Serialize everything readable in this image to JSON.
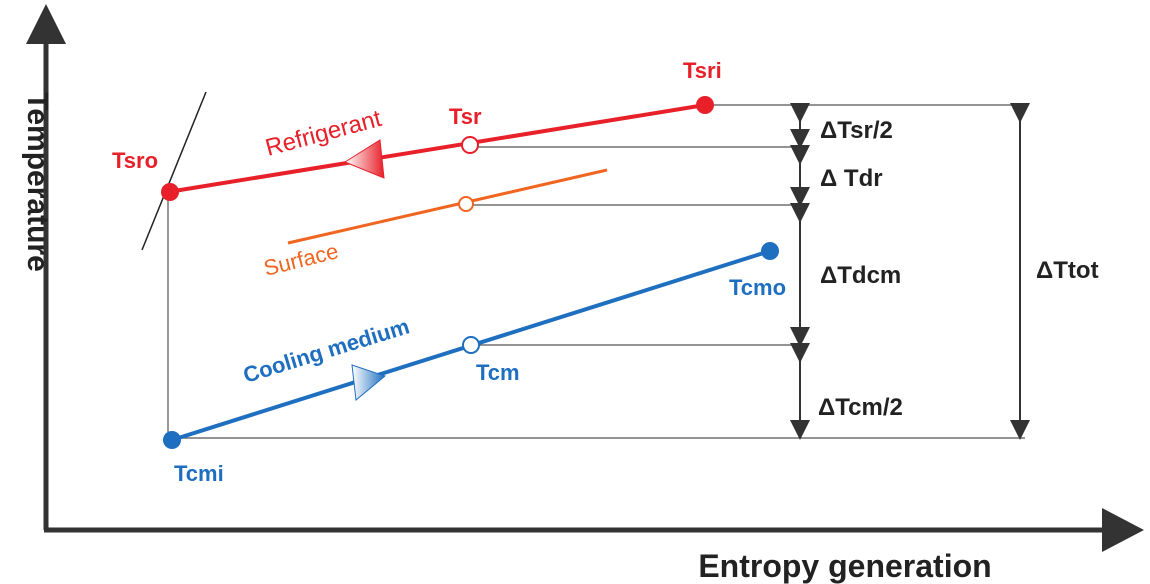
{
  "axes": {
    "y_label": "Temperature",
    "x_label": "Entropy generation"
  },
  "curves": {
    "refrigerant": {
      "label": "Refrigerant",
      "color": "#e8202a"
    },
    "surface": {
      "label": "Surface",
      "color": "#f0651f"
    },
    "cooling": {
      "label": "Cooling medium",
      "color": "#1f6fc0"
    }
  },
  "points": {
    "tsri": "Tsri",
    "tsr": "Tsr",
    "tsro": "Tsro",
    "tcmo": "Tcmo",
    "tcm": "Tcm",
    "tcmi": "Tcmi"
  },
  "deltas": {
    "dtsr_half": "ΔTsr/2",
    "dtdr": "Δ Tdr",
    "dtdcm": "ΔTdcm",
    "dtcm_half": "ΔTcm/2",
    "dttot": "ΔTtot"
  },
  "colors": {
    "axis": "#333333",
    "guide": "#555555",
    "label_dark": "#222222"
  }
}
